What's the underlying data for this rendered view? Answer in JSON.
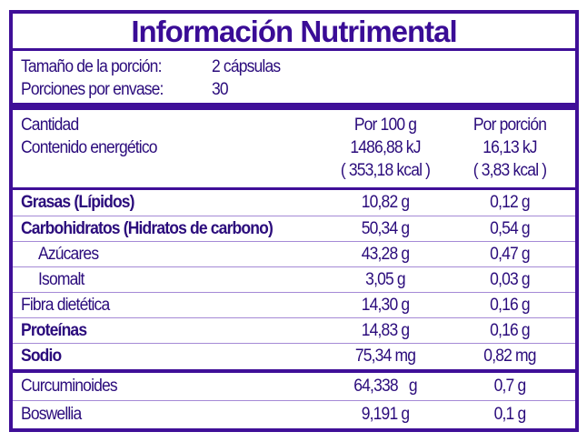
{
  "title": "Información Nutrimental",
  "serving": {
    "size_label": "Tamaño de la porción:",
    "size_value": "2 cápsulas",
    "per_container_label": "Porciones por envase:",
    "per_container_value": "30"
  },
  "header": {
    "quantity": "Cantidad",
    "energy": "Contenido energético",
    "col1": "Por 100 g",
    "col2": "Por porción",
    "energy_kj_100g": "1486,88 kJ",
    "energy_kcal_100g": "( 353,18 kcal )",
    "energy_kj_portion": "16,13 kJ",
    "energy_kcal_portion": "( 3,83 kcal )"
  },
  "rows": [
    {
      "label": "Grasas (Lípidos)",
      "per100": "10,82 g",
      "portion": "0,12 g"
    },
    {
      "label": "Carbohidratos (Hidratos de carbono)",
      "per100": "50,34 g",
      "portion": "0,54 g"
    },
    {
      "label": "Azúcares",
      "per100": "43,28 g",
      "portion": "0,47 g"
    },
    {
      "label": "Isomalt",
      "per100": "3,05 g",
      "portion": "0,03 g"
    },
    {
      "label": "Fibra dietética",
      "per100": "14,30 g",
      "portion": "0,16 g"
    },
    {
      "label": "Proteínas",
      "per100": "14,83 g",
      "portion": "0,16 g"
    },
    {
      "label": "Sodio",
      "per100": "75,34 mg",
      "portion": "0,82 mg"
    }
  ],
  "extra_rows": [
    {
      "label": "Curcuminoides",
      "per100": "64,338   g",
      "portion": "0,7 g"
    },
    {
      "label": "Boswellia",
      "per100": "9,191 g",
      "portion": "0,1 g"
    }
  ],
  "colors": {
    "border": "#3f0f98",
    "text": "#2b0c7c",
    "divider": "#a58ad6"
  }
}
